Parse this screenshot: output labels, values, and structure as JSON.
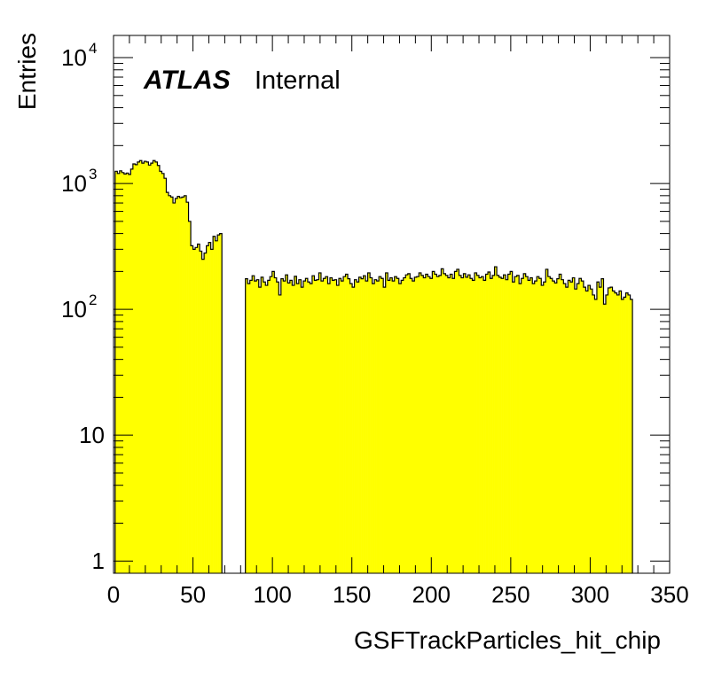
{
  "chart_data": {
    "type": "histogram",
    "title": "",
    "xlabel": "GSFTrackParticles_hit_chip",
    "ylabel": "Entries",
    "xlim": [
      0,
      350
    ],
    "ylim": [
      0.8,
      15000
    ],
    "yscale": "log",
    "x_ticks": [
      "0",
      "50",
      "100",
      "150",
      "200",
      "250",
      "300",
      "350"
    ],
    "y_ticks": [
      {
        "value": 1,
        "label": "1"
      },
      {
        "value": 10,
        "label": "10"
      },
      {
        "value": 100,
        "base": "10",
        "exp": "2"
      },
      {
        "value": 1000,
        "base": "10",
        "exp": "3"
      },
      {
        "value": 10000,
        "base": "10",
        "exp": "4"
      }
    ],
    "fill_color": "#ffff00",
    "line_color": "#000000",
    "grid": false,
    "annotation": {
      "bold": "ATLAS",
      "text": "Internal"
    },
    "bin_width": 1.4,
    "segments": [
      {
        "x_start": 1,
        "values": [
          1250,
          1200,
          1260,
          1220,
          1190,
          1210,
          1180,
          1300,
          1430,
          1410,
          1480,
          1520,
          1450,
          1500,
          1480,
          1400,
          1450,
          1520,
          1480,
          1390,
          1250,
          1200,
          1100,
          850,
          800,
          780,
          700,
          760,
          790,
          770,
          780,
          800,
          710,
          500,
          320,
          300,
          310,
          330,
          290,
          250,
          280,
          320,
          340,
          300,
          380,
          350,
          390,
          400
        ]
      },
      {
        "x_start": 83,
        "values": [
          175,
          160,
          170,
          185,
          168,
          172,
          150,
          180,
          165,
          155,
          170,
          182,
          200,
          178,
          165,
          130,
          175,
          168,
          188,
          162,
          170,
          155,
          183,
          160,
          172,
          150,
          168,
          176,
          165,
          160,
          185,
          170,
          172,
          195,
          168,
          176,
          182,
          160,
          178,
          170,
          172,
          155,
          176,
          168,
          182,
          190,
          175,
          160,
          150,
          172,
          165,
          180,
          175,
          185,
          168,
          195,
          178,
          160,
          172,
          168,
          182,
          176,
          150,
          195,
          170,
          178,
          168,
          182,
          176,
          160,
          170,
          178,
          188,
          192,
          176,
          168,
          180,
          182,
          195,
          186,
          178,
          190,
          182,
          176,
          200,
          190,
          182,
          186,
          210,
          192,
          186,
          178,
          190,
          176,
          200,
          208,
          186,
          178,
          192,
          180,
          188,
          176,
          170,
          195,
          186,
          178,
          182,
          170,
          190,
          198,
          176,
          186,
          218,
          186,
          180,
          176,
          188,
          172,
          190,
          200,
          165,
          182,
          186,
          160,
          176,
          192,
          182,
          170,
          178,
          160,
          168,
          182,
          176,
          155,
          165,
          208,
          182,
          176,
          168,
          162,
          175,
          190,
          172,
          160,
          150,
          170,
          165,
          178,
          145,
          160,
          176,
          168,
          150,
          140,
          155,
          145,
          130,
          120,
          165,
          150,
          175,
          110,
          130,
          148,
          150,
          140,
          135,
          130,
          140,
          120,
          125,
          135,
          130,
          120
        ]
      }
    ]
  }
}
